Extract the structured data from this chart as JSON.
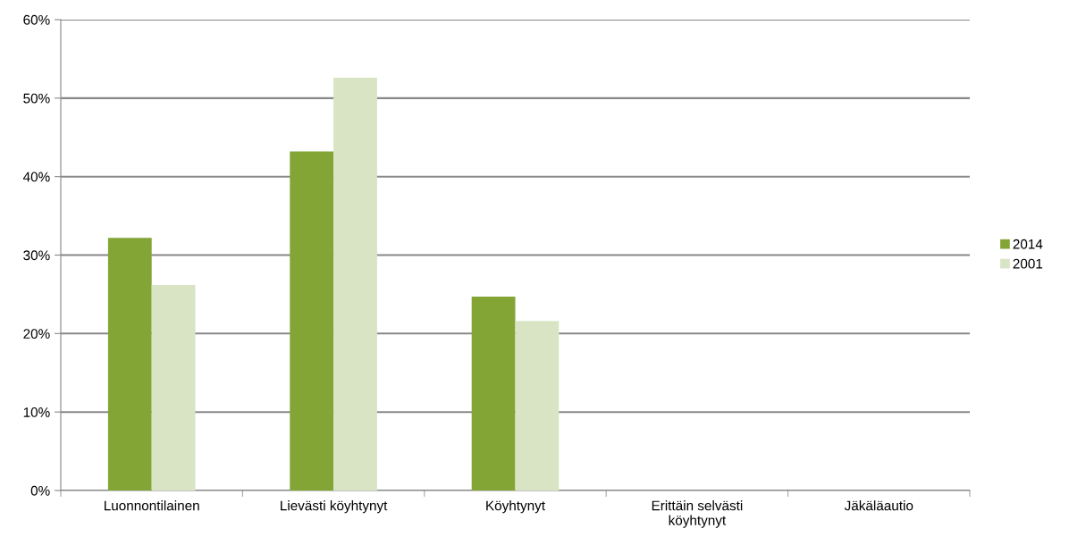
{
  "chart_data": {
    "type": "bar",
    "categories": [
      "Luonnontilainen",
      "Lievästi köyhtynyt",
      "Köyhtynyt",
      "Erittäin selvästi\nköyhtynyt",
      "Jäkäläautio"
    ],
    "series": [
      {
        "name": "2014",
        "color": "#82a536",
        "values": [
          32.2,
          43.2,
          24.7,
          0,
          0
        ]
      },
      {
        "name": "2001",
        "color": "#d9e4c5",
        "values": [
          26.2,
          52.6,
          21.6,
          0,
          0
        ]
      }
    ],
    "ylim": [
      0,
      60
    ],
    "yticks": [
      {
        "value": 0,
        "label": "0%"
      },
      {
        "value": 10,
        "label": "10%"
      },
      {
        "value": 20,
        "label": "20%"
      },
      {
        "value": 30,
        "label": "30%"
      },
      {
        "value": 40,
        "label": "40%"
      },
      {
        "value": 50,
        "label": "50%"
      },
      {
        "value": 60,
        "label": "60%"
      }
    ],
    "grid": "y",
    "legend": "right"
  }
}
